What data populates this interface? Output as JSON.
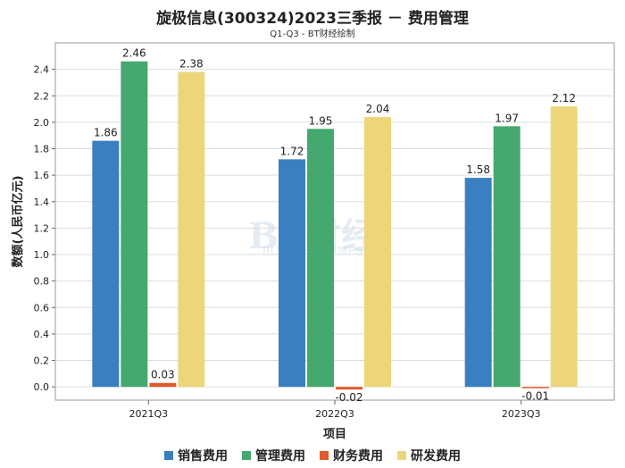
{
  "chart_data": {
    "type": "bar",
    "title": "旋极信息(300324)2023三季报 － 费用管理",
    "subtitle": "Q1-Q3 - BT财经绘制",
    "xlabel": "项目",
    "ylabel": "数额(人民币亿元)",
    "categories": [
      "2021Q3",
      "2022Q3",
      "2023Q3"
    ],
    "ylim": [
      -0.1,
      2.6
    ],
    "yticks": [
      0.0,
      0.2,
      0.4,
      0.6,
      0.8,
      1.0,
      1.2,
      1.4,
      1.6,
      1.8,
      2.0,
      2.2,
      2.4
    ],
    "ytick_labels": [
      "0.0",
      "0.2",
      "0.4",
      "0.6",
      "0.8",
      "1.0",
      "1.2",
      "1.4",
      "1.6",
      "1.8",
      "2.0",
      "2.2",
      "2.4"
    ],
    "legend_position": "bottom",
    "series": [
      {
        "name": "销售费用",
        "color": "#3a7fc0",
        "values": [
          1.86,
          1.72,
          1.58
        ],
        "labels": [
          "1.86",
          "1.72",
          "1.58"
        ]
      },
      {
        "name": "管理费用",
        "color": "#45a86f",
        "values": [
          2.46,
          1.95,
          1.97
        ],
        "labels": [
          "2.46",
          "1.95",
          "1.97"
        ]
      },
      {
        "name": "财务费用",
        "color": "#e05a2c",
        "values": [
          0.03,
          -0.02,
          -0.01
        ],
        "labels": [
          "0.03",
          "-0.02",
          "-0.01"
        ]
      },
      {
        "name": "研发费用",
        "color": "#edd67a",
        "values": [
          2.38,
          2.04,
          2.12
        ],
        "labels": [
          "2.38",
          "2.04",
          "2.12"
        ]
      }
    ],
    "watermark": {
      "main": "BT财经",
      "sub": "BUSINESS TIMES"
    }
  }
}
